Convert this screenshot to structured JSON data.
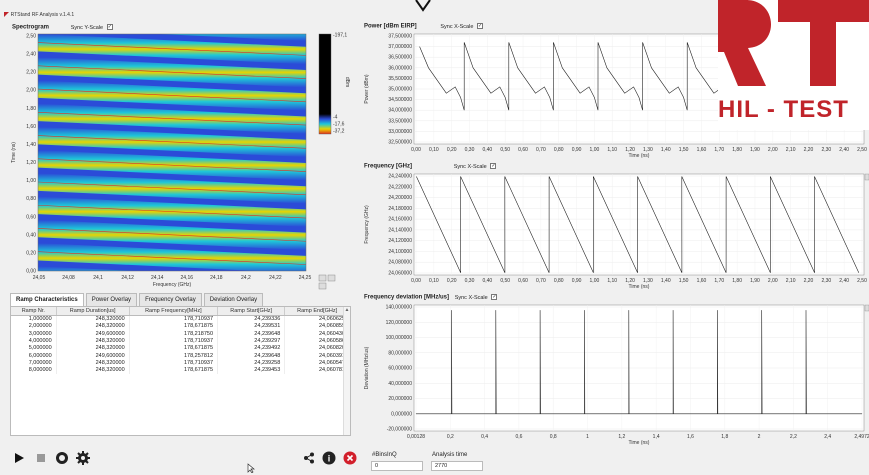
{
  "app": {
    "title": "RTStand RF Analysis v.1.4.1"
  },
  "logo": {
    "text": "RT",
    "subtitle": "HIL - TEST"
  },
  "spectrogram": {
    "title": "Spectrogram",
    "sync_label": "Sync Y-Scale",
    "sync_checked": "✓",
    "ylabel": "Time (ns)",
    "xlabel": "Frequency (GHz)",
    "y_ticks": [
      "2,50",
      "2,40",
      "2,20",
      "2,00",
      "1,80",
      "1,60",
      "1,40",
      "1,20",
      "1,00",
      "0,80",
      "0,60",
      "0,40",
      "0,20",
      "0,00"
    ],
    "x_ticks": [
      "24,05",
      "24,08",
      "24,1",
      "24,12",
      "24,14",
      "24,16",
      "24,18",
      "24,2",
      "24,22",
      "24,25"
    ],
    "colorbar_label": "dBm",
    "colorbar_ticks": [
      "-197,1",
      "-4",
      "-17,6",
      "-37,2"
    ]
  },
  "tabs": [
    "Ramp Characteristics",
    "Power Overlay",
    "Frequency Overlay",
    "Deviation Overlay"
  ],
  "ramp_table": {
    "columns": [
      "Ramp Nr.",
      "Ramp Duration[us]",
      "Ramp Frequency[MHz]",
      "Ramp Start[GHz]",
      "Ramp End[GHz]"
    ],
    "rows": [
      [
        "1,000000",
        "248,320000",
        "178,710937",
        "24,239336",
        "24,060625"
      ],
      [
        "2,000000",
        "248,320000",
        "178,671875",
        "24,239531",
        "24,060859"
      ],
      [
        "3,000000",
        "249,600000",
        "178,218750",
        "24,239648",
        "24,060430"
      ],
      [
        "4,000000",
        "248,320000",
        "178,710937",
        "24,239297",
        "24,060586"
      ],
      [
        "5,000000",
        "248,320000",
        "178,671875",
        "24,239492",
        "24,060820"
      ],
      [
        "6,000000",
        "249,600000",
        "178,257812",
        "24,239648",
        "24,060391"
      ],
      [
        "7,000000",
        "248,320000",
        "178,710937",
        "24,239258",
        "24,060547"
      ],
      [
        "8,000000",
        "248,320000",
        "178,671875",
        "24,239453",
        "24,060781"
      ]
    ]
  },
  "power": {
    "title": "Power [dBm EIRP]",
    "sync_label": "Sync X-Scale",
    "sync_checked": "✓",
    "ylabel": "Power (dBm)",
    "xlabel": "Time (ns)",
    "y_ticks": [
      "37,500000",
      "37,000000",
      "36,500000",
      "36,000000",
      "35,500000",
      "35,000000",
      "34,500000",
      "34,000000",
      "33,500000",
      "33,000000",
      "32,500000"
    ],
    "x_ticks": [
      "0,00",
      "0,10",
      "0,20",
      "0,30",
      "0,40",
      "0,50",
      "0,60",
      "0,70",
      "0,80",
      "0,90",
      "1,00",
      "1,10",
      "1,20",
      "1,30",
      "1,40",
      "1,50",
      "1,60",
      "1,70",
      "1,80",
      "1,90",
      "2,00",
      "2,10",
      "2,20",
      "2,30",
      "2,40",
      "2,50"
    ]
  },
  "frequency": {
    "title": "Frequency [GHz]",
    "sync_label": "Sync X-Scale",
    "sync_checked": "✓",
    "ylabel": "Frequency (GHz)",
    "xlabel": "Time (ns)",
    "y_ticks": [
      "24,240000",
      "24,220000",
      "24,200000",
      "24,180000",
      "24,160000",
      "24,140000",
      "24,120000",
      "24,100000",
      "24,080000",
      "24,060000"
    ],
    "x_ticks": [
      "0,00",
      "0,10",
      "0,20",
      "0,30",
      "0,40",
      "0,50",
      "0,60",
      "0,70",
      "0,80",
      "0,90",
      "1,00",
      "1,10",
      "1,20",
      "1,30",
      "1,40",
      "1,50",
      "1,60",
      "1,70",
      "1,80",
      "1,90",
      "2,00",
      "2,10",
      "2,20",
      "2,30",
      "2,40",
      "2,50"
    ]
  },
  "deviation": {
    "title": "Frequency deviation [MHz/us]",
    "sync_label": "Sync X-Scale",
    "sync_checked": "✓",
    "ylabel": "Deviation (MHz/us)",
    "xlabel": "Time (ns)",
    "y_ticks": [
      "140,000000",
      "120,000000",
      "100,000000",
      "80,000000",
      "60,000000",
      "40,000000",
      "20,000000",
      "0,000000",
      "-20,000000"
    ],
    "x_ticks": [
      "0,00128",
      "0,2",
      "0,4",
      "0,6",
      "0,8",
      "1",
      "1,2",
      "1,4",
      "1,6",
      "1,8",
      "2",
      "2,2",
      "2,4",
      "2,4972"
    ]
  },
  "status": {
    "binsinq_label": "#BinsInQ",
    "binsinq_value": "0",
    "analysis_label": "Analysis time",
    "analysis_value": "2770"
  },
  "icons": [
    "play-icon",
    "stop-icon",
    "settings-circle-icon",
    "gear-icon",
    "share-icon",
    "info-icon",
    "close-icon",
    "cursor-icon",
    "arrow-down-icon"
  ],
  "colors": {
    "logo_red": "#c0242a",
    "dark_bg": "#111111",
    "spectrogram_blue": "#2b4bd8",
    "spectrogram_cyan": "#1ec8d8",
    "spectrogram_yellow": "#e8d400"
  }
}
